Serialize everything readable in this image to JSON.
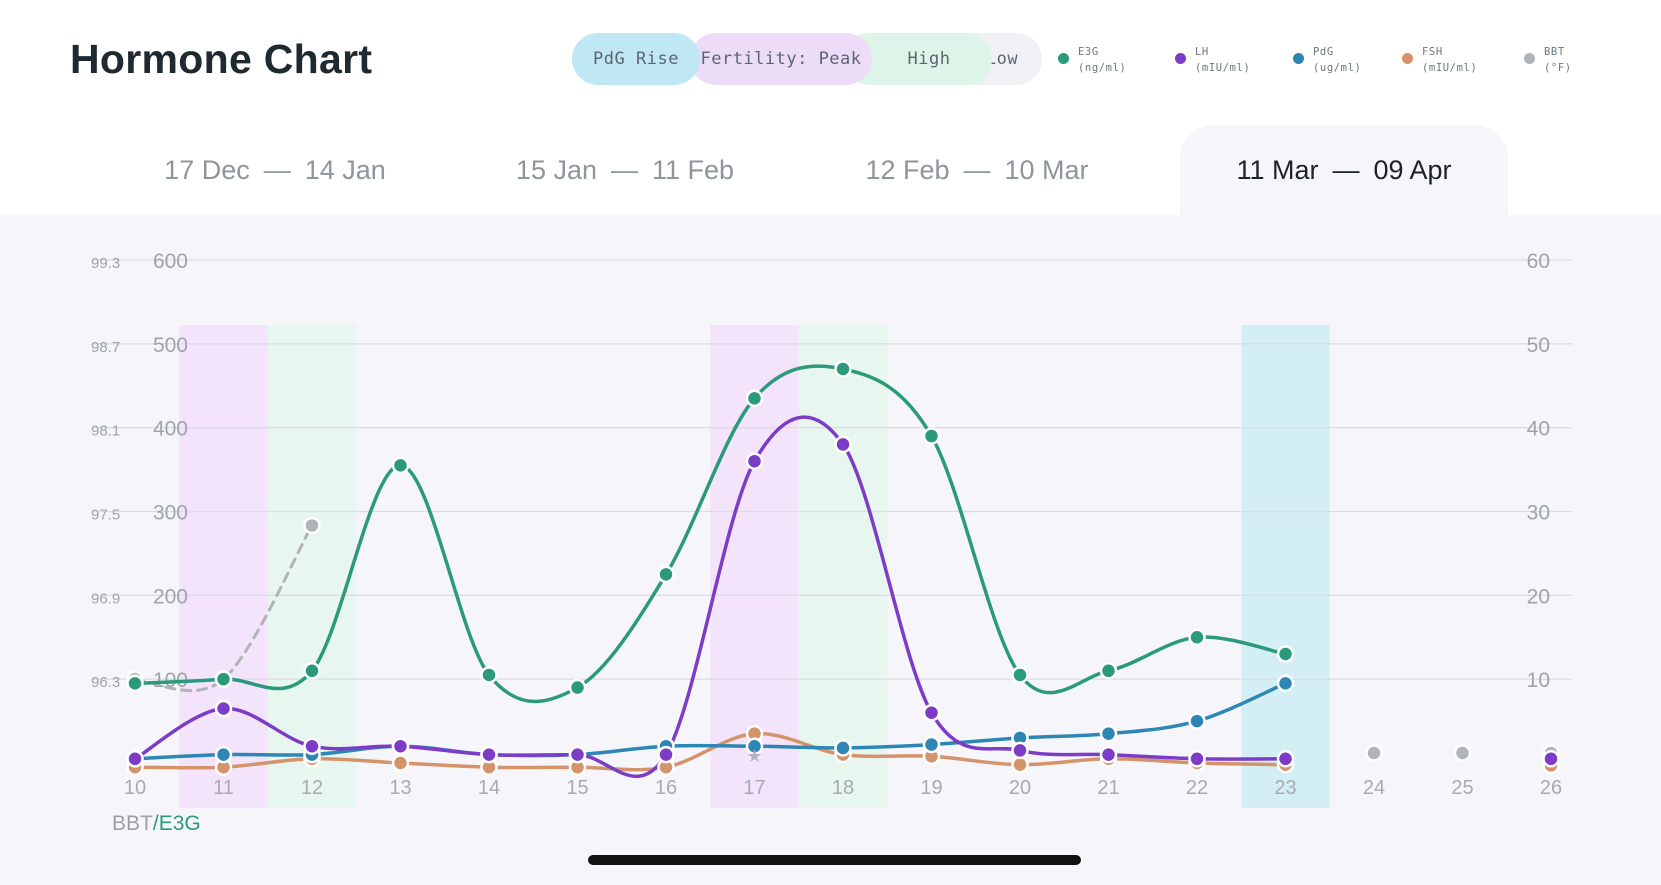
{
  "title": "Hormone Chart",
  "pills": {
    "rise": "PdG Rise",
    "peak": "Fertility: Peak",
    "high": "High",
    "low": "Low"
  },
  "legend": [
    {
      "name": "E3G",
      "unit": "(ng/ml)",
      "color": "#2a9a7a"
    },
    {
      "name": "LH",
      "unit": "(mIU/ml)",
      "color": "#7d3cc8"
    },
    {
      "name": "PdG",
      "unit": "(ug/ml)",
      "color": "#2e86b5"
    },
    {
      "name": "FSH",
      "unit": "(mIU/ml)",
      "color": "#d4936b"
    },
    {
      "name": "BBT",
      "unit": "(°F)",
      "color": "#b0b3b8"
    }
  ],
  "tabs": [
    {
      "start": "17 Dec",
      "end": "14 Jan",
      "active": false
    },
    {
      "start": "15 Jan",
      "end": "11 Feb",
      "active": false
    },
    {
      "start": "12 Feb",
      "end": "10 Mar",
      "active": false
    },
    {
      "start": "11 Mar",
      "end": "09 Apr",
      "active": true
    }
  ],
  "axis_caption": {
    "bbt": "BBT",
    "sep": "/",
    "e3g": "E3G"
  },
  "chart_data": {
    "type": "line",
    "x": [
      10,
      11,
      12,
      13,
      14,
      15,
      16,
      17,
      18,
      19,
      20,
      21,
      22,
      23,
      24,
      25,
      26
    ],
    "y_bbt_ticks": [
      "96.3",
      "96.9",
      "97.5",
      "98.1",
      "98.7",
      "99.3"
    ],
    "y_left_ticks": [
      100,
      200,
      300,
      400,
      500,
      600
    ],
    "y_right_ticks": [
      10,
      20,
      30,
      40,
      50,
      60
    ],
    "ylim_left": [
      0,
      600
    ],
    "ylim_right": [
      0,
      60
    ],
    "grid": true,
    "shading": [
      {
        "day": 11,
        "phase": "peak",
        "color": "#f3e4fb"
      },
      {
        "day": 12,
        "phase": "high",
        "color": "#e7f6ee"
      },
      {
        "day": 17,
        "phase": "peak",
        "color": "#f3e4fb"
      },
      {
        "day": 18,
        "phase": "high",
        "color": "#e7f6ee"
      },
      {
        "day": 23,
        "phase": "rise",
        "color": "#d3eef5"
      }
    ],
    "series": [
      {
        "name": "E3G",
        "axis": "left",
        "color": "#2a9a7a",
        "x": [
          10,
          11,
          12,
          13,
          14,
          15,
          16,
          17,
          18,
          19,
          20,
          21,
          22,
          23
        ],
        "values": [
          95,
          100,
          110,
          355,
          105,
          90,
          225,
          435,
          470,
          390,
          105,
          110,
          150,
          130
        ]
      },
      {
        "name": "LH",
        "axis": "right",
        "color": "#7d3cc8",
        "x": [
          10,
          11,
          12,
          13,
          14,
          15,
          16,
          17,
          18,
          19,
          20,
          21,
          22,
          23,
          26
        ],
        "values": [
          0.5,
          6.5,
          2,
          2,
          1,
          1,
          1,
          36,
          38,
          6,
          1.5,
          1,
          0.5,
          0.5,
          0.5
        ]
      },
      {
        "name": "PdG",
        "axis": "right",
        "color": "#2e86b5",
        "x": [
          10,
          11,
          12,
          13,
          14,
          15,
          16,
          17,
          18,
          19,
          20,
          21,
          22,
          23
        ],
        "values": [
          0.5,
          1,
          1,
          2,
          1,
          1,
          2,
          2,
          1.8,
          2.2,
          3,
          3.5,
          5,
          9.5
        ]
      },
      {
        "name": "FSH",
        "axis": "right",
        "color": "#d4936b",
        "x": [
          10,
          11,
          12,
          13,
          14,
          15,
          16,
          17,
          18,
          19,
          20,
          21,
          22,
          23,
          26
        ],
        "values": [
          -0.5,
          -0.5,
          0.5,
          0,
          -0.5,
          -0.5,
          -0.5,
          3.5,
          1,
          0.8,
          -0.2,
          0.5,
          0,
          -0.2,
          -0.3
        ]
      },
      {
        "name": "BBT",
        "axis": "bbt",
        "color": "#b0b3b8",
        "dashed": true,
        "x": [
          10,
          11,
          12,
          24,
          25,
          26
        ],
        "values": [
          96.3,
          96.3,
          97.4,
          null,
          null,
          null
        ]
      }
    ]
  }
}
